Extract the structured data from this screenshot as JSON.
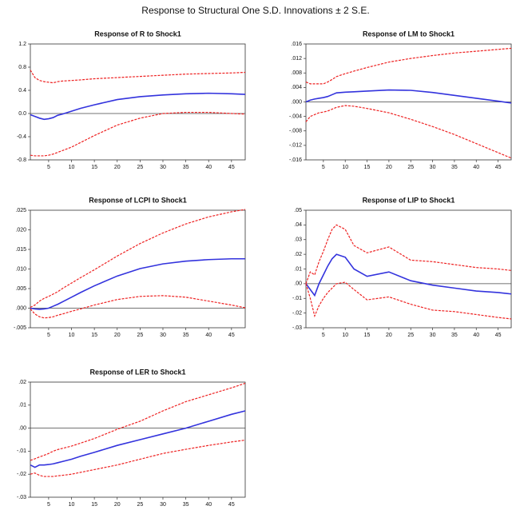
{
  "title": "Response to Structural One S.D. Innovations ± 2 S.E.",
  "chart_data": [
    {
      "type": "line",
      "title": "Response of R to Shock1",
      "x": [
        1,
        2,
        3,
        4,
        5,
        6,
        7,
        8,
        10,
        12,
        15,
        20,
        25,
        30,
        35,
        40,
        45,
        48
      ],
      "xlim": [
        1,
        48
      ],
      "xticks": [
        5,
        10,
        15,
        20,
        25,
        30,
        35,
        40,
        45
      ],
      "ylim": [
        -0.8,
        1.2
      ],
      "yticks": [
        1.2,
        0.8,
        0.4,
        {
          "value": 0,
          "label": "0.0"
        },
        -0.4,
        -0.8
      ],
      "series": [
        {
          "color": "#3333dd",
          "dashed": false,
          "values": [
            -0.02,
            -0.05,
            -0.08,
            -0.1,
            -0.09,
            -0.07,
            -0.03,
            -0.01,
            0.04,
            0.09,
            0.15,
            0.24,
            0.29,
            0.32,
            0.34,
            0.35,
            0.34,
            0.33
          ]
        },
        {
          "color": "#ee2222",
          "dashed": true,
          "values": [
            0.75,
            0.62,
            0.57,
            0.55,
            0.54,
            0.53,
            0.55,
            0.56,
            0.57,
            0.58,
            0.6,
            0.62,
            0.64,
            0.66,
            0.68,
            0.69,
            0.7,
            0.71
          ]
        },
        {
          "color": "#ee2222",
          "dashed": true,
          "values": [
            -0.72,
            -0.73,
            -0.73,
            -0.73,
            -0.72,
            -0.7,
            -0.67,
            -0.64,
            -0.58,
            -0.5,
            -0.38,
            -0.2,
            -0.08,
            0,
            0.02,
            0.02,
            0,
            -0.01
          ]
        }
      ]
    },
    {
      "type": "line",
      "title": "Response of LM to Shock1",
      "x": [
        1,
        2,
        3,
        4,
        5,
        6,
        7,
        8,
        10,
        12,
        15,
        20,
        25,
        30,
        35,
        40,
        45,
        48
      ],
      "xlim": [
        1,
        48
      ],
      "xticks": [
        5,
        10,
        15,
        20,
        25,
        30,
        35,
        40,
        45
      ],
      "ylim": [
        -0.016,
        0.016
      ],
      "yticks": [
        {
          "value": 0.016,
          "label": ".016"
        },
        {
          "value": 0.012,
          "label": ".012"
        },
        {
          "value": 0.008,
          "label": ".008"
        },
        {
          "value": 0.004,
          "label": ".004"
        },
        {
          "value": 0,
          "label": ".000"
        },
        {
          "value": -0.004,
          "label": "-.004"
        },
        {
          "value": -0.008,
          "label": "-.008"
        },
        {
          "value": -0.012,
          "label": "-.012"
        },
        {
          "value": -0.016,
          "label": "-.016"
        }
      ],
      "series": [
        {
          "color": "#3333dd",
          "dashed": false,
          "values": [
            0,
            0.0005,
            0.0008,
            0.001,
            0.0012,
            0.0015,
            0.002,
            0.0025,
            0.0027,
            0.0028,
            0.003,
            0.0033,
            0.0032,
            0.0026,
            0.0018,
            0.001,
            0.0002,
            -0.0003
          ]
        },
        {
          "color": "#ee2222",
          "dashed": true,
          "values": [
            0.0055,
            0.005,
            0.005,
            0.005,
            0.005,
            0.0055,
            0.0062,
            0.007,
            0.0078,
            0.0085,
            0.0095,
            0.011,
            0.012,
            0.0128,
            0.0135,
            0.014,
            0.0145,
            0.0148
          ]
        },
        {
          "color": "#ee2222",
          "dashed": true,
          "values": [
            -0.0055,
            -0.004,
            -0.0035,
            -0.003,
            -0.0028,
            -0.0025,
            -0.002,
            -0.0015,
            -0.001,
            -0.0012,
            -0.0018,
            -0.003,
            -0.0048,
            -0.0068,
            -0.009,
            -0.0115,
            -0.014,
            -0.0155
          ]
        }
      ]
    },
    {
      "type": "line",
      "title": "Response of LCPI to Shock1",
      "x": [
        1,
        2,
        3,
        4,
        5,
        6,
        7,
        8,
        10,
        12,
        15,
        20,
        25,
        30,
        35,
        40,
        45,
        48
      ],
      "xlim": [
        1,
        48
      ],
      "xticks": [
        5,
        10,
        15,
        20,
        25,
        30,
        35,
        40,
        45
      ],
      "ylim": [
        -0.005,
        0.025
      ],
      "yticks": [
        {
          "value": 0.025,
          "label": ".025"
        },
        {
          "value": 0.02,
          "label": ".020"
        },
        {
          "value": 0.015,
          "label": ".015"
        },
        {
          "value": 0.01,
          "label": ".010"
        },
        {
          "value": 0.005,
          "label": ".005"
        },
        {
          "value": 0,
          "label": ".000"
        },
        {
          "value": -0.005,
          "label": "-.005"
        }
      ],
      "series": [
        {
          "color": "#3333dd",
          "dashed": false,
          "values": [
            0,
            -0.0002,
            -0.0003,
            -0.0002,
            0,
            0.0005,
            0.001,
            0.0016,
            0.0028,
            0.004,
            0.0057,
            0.0082,
            0.0101,
            0.0113,
            0.012,
            0.0124,
            0.0126,
            0.0126
          ]
        },
        {
          "color": "#ee2222",
          "dashed": true,
          "values": [
            0.0002,
            0.0008,
            0.0018,
            0.0025,
            0.003,
            0.0036,
            0.0042,
            0.005,
            0.0064,
            0.0078,
            0.0098,
            0.0133,
            0.0165,
            0.0192,
            0.0215,
            0.0233,
            0.0246,
            0.0252
          ]
        },
        {
          "color": "#ee2222",
          "dashed": true,
          "values": [
            -0.0002,
            -0.0015,
            -0.0022,
            -0.0025,
            -0.0024,
            -0.0022,
            -0.0018,
            -0.0015,
            -0.0008,
            -0.0002,
            0.0008,
            0.0022,
            0.003,
            0.0032,
            0.0028,
            0.0018,
            0.0008,
            0.0001
          ]
        }
      ]
    },
    {
      "type": "line",
      "title": "Response of LIP to Shock1",
      "x": [
        1,
        2,
        3,
        4,
        5,
        6,
        7,
        8,
        10,
        12,
        15,
        20,
        25,
        30,
        35,
        40,
        45,
        48
      ],
      "xlim": [
        1,
        48
      ],
      "xticks": [
        5,
        10,
        15,
        20,
        25,
        30,
        35,
        40,
        45
      ],
      "ylim": [
        -0.03,
        0.05
      ],
      "yticks": [
        {
          "value": 0.05,
          "label": ".05"
        },
        {
          "value": 0.04,
          "label": ".04"
        },
        {
          "value": 0.03,
          "label": ".03"
        },
        {
          "value": 0.02,
          "label": ".02"
        },
        {
          "value": 0.01,
          "label": ".01"
        },
        {
          "value": 0,
          "label": ".00"
        },
        {
          "value": -0.01,
          "label": "-.01"
        },
        {
          "value": -0.02,
          "label": "-.02"
        },
        {
          "value": -0.03,
          "label": "-.03"
        }
      ],
      "series": [
        {
          "color": "#3333dd",
          "dashed": false,
          "values": [
            0,
            -0.004,
            -0.008,
            0,
            0.006,
            0.012,
            0.017,
            0.02,
            0.018,
            0.01,
            0.005,
            0.008,
            0.002,
            -0.001,
            -0.003,
            -0.005,
            -0.006,
            -0.007
          ]
        },
        {
          "color": "#ee2222",
          "dashed": true,
          "values": [
            0,
            0.008,
            0.006,
            0.015,
            0.022,
            0.03,
            0.037,
            0.04,
            0.037,
            0.026,
            0.021,
            0.025,
            0.016,
            0.015,
            0.013,
            0.011,
            0.01,
            0.009
          ]
        },
        {
          "color": "#ee2222",
          "dashed": true,
          "values": [
            0,
            -0.01,
            -0.022,
            -0.015,
            -0.01,
            -0.006,
            -0.003,
            0,
            0.001,
            -0.004,
            -0.011,
            -0.009,
            -0.014,
            -0.018,
            -0.019,
            -0.021,
            -0.023,
            -0.024
          ]
        }
      ]
    },
    {
      "type": "line",
      "title": "Response of LER to Shock1",
      "x": [
        1,
        2,
        3,
        4,
        5,
        6,
        7,
        8,
        10,
        12,
        15,
        20,
        25,
        30,
        35,
        40,
        45,
        48
      ],
      "xlim": [
        1,
        48
      ],
      "xticks": [
        5,
        10,
        15,
        20,
        25,
        30,
        35,
        40,
        45
      ],
      "ylim": [
        -0.03,
        0.02
      ],
      "yticks": [
        {
          "value": 0.02,
          "label": ".02"
        },
        {
          "value": 0.01,
          "label": ".01"
        },
        {
          "value": 0,
          "label": ".00"
        },
        {
          "value": -0.01,
          "label": "-.01"
        },
        {
          "value": -0.02,
          "label": "-.02"
        },
        {
          "value": -0.03,
          "label": "-.03"
        }
      ],
      "series": [
        {
          "color": "#3333dd",
          "dashed": false,
          "values": [
            -0.016,
            -0.017,
            -0.016,
            -0.016,
            -0.0158,
            -0.0155,
            -0.015,
            -0.0145,
            -0.0135,
            -0.0122,
            -0.0105,
            -0.0075,
            -0.005,
            -0.0025,
            0,
            0.003,
            0.006,
            0.0075
          ]
        },
        {
          "color": "#ee2222",
          "dashed": true,
          "values": [
            -0.014,
            -0.0133,
            -0.0125,
            -0.0118,
            -0.011,
            -0.01,
            -0.0093,
            -0.0088,
            -0.0078,
            -0.0065,
            -0.0045,
            -0.0005,
            0.003,
            0.0075,
            0.0115,
            0.0145,
            0.0175,
            0.0195
          ]
        },
        {
          "color": "#ee2222",
          "dashed": true,
          "values": [
            -0.02,
            -0.0195,
            -0.0205,
            -0.021,
            -0.021,
            -0.021,
            -0.0207,
            -0.0205,
            -0.02,
            -0.0192,
            -0.018,
            -0.016,
            -0.0135,
            -0.011,
            -0.0092,
            -0.0075,
            -0.006,
            -0.0052
          ]
        }
      ]
    }
  ]
}
